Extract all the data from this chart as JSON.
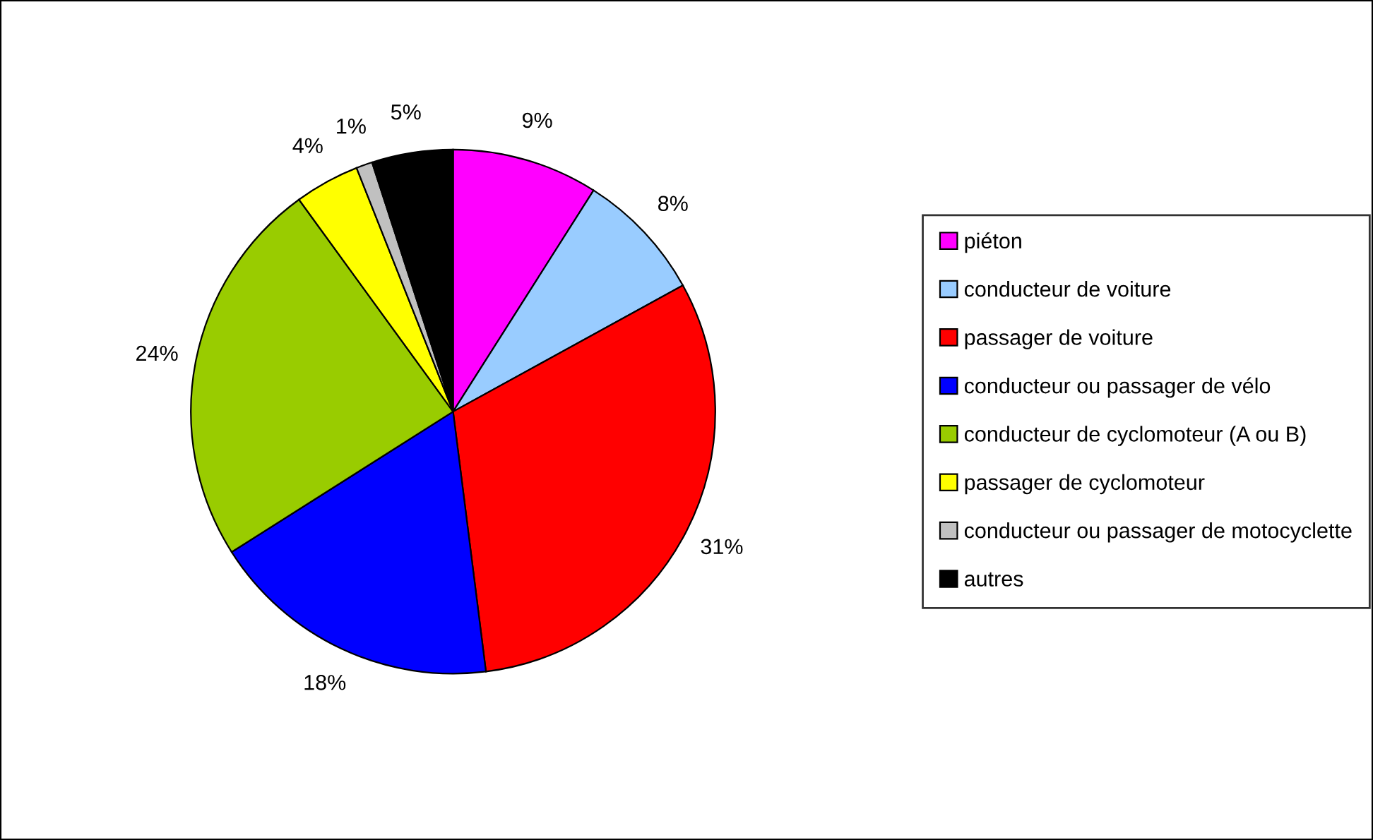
{
  "chart_data": {
    "type": "pie",
    "categories": [
      "piéton",
      "conducteur de voiture",
      "passager de voiture",
      "conducteur ou passager de vélo",
      "conducteur de cyclomoteur (A ou B)",
      "passager de cyclomoteur",
      "conducteur ou passager de motocyclette",
      "autres"
    ],
    "values": [
      9,
      8,
      31,
      18,
      24,
      4,
      1,
      5
    ],
    "value_labels": [
      "9%",
      "8%",
      "31%",
      "18%",
      "24%",
      "4%",
      "1%",
      "5%"
    ],
    "colors": [
      "#ff00ff",
      "#99ccff",
      "#ff0000",
      "#0000ff",
      "#99cc00",
      "#ffff00",
      "#c0c0c0",
      "#000000"
    ],
    "legend": "right"
  }
}
